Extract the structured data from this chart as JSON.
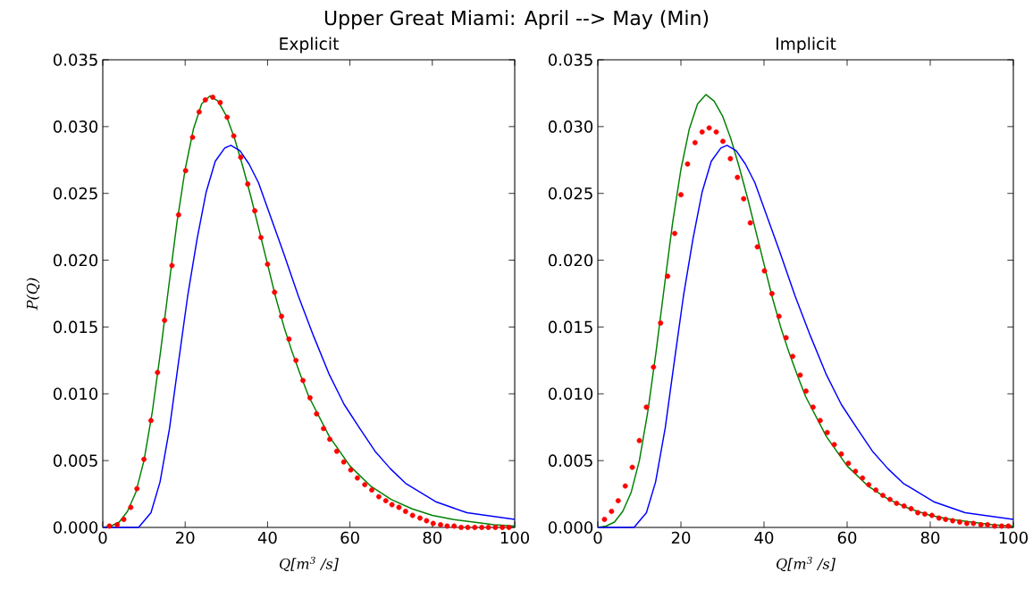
{
  "chart_data": [
    {
      "type": "line",
      "title": "Upper Great Miami: April --> May (Min)",
      "subtitle": "Explicit",
      "xlabel": "Q[m$^{3}$ /s]",
      "ylabel": "P(Q)",
      "xlim": [
        0,
        100
      ],
      "ylim": [
        0,
        0.035
      ],
      "xticks": [
        0,
        20,
        40,
        60,
        80,
        100
      ],
      "yticks": [
        {
          "value": 0,
          "label": "0.000"
        },
        {
          "value": 0.005,
          "label": "0.005"
        },
        {
          "value": 0.01,
          "label": "0.010"
        },
        {
          "value": 0.015,
          "label": "0.015"
        },
        {
          "value": 0.02,
          "label": "0.020"
        },
        {
          "value": 0.025,
          "label": "0.025"
        },
        {
          "value": 0.03,
          "label": "0.030"
        },
        {
          "value": 0.035,
          "label": "0.035"
        }
      ],
      "series": [
        {
          "color": "#008000",
          "x": [
            0,
            2,
            4,
            6,
            8,
            10,
            12,
            14,
            16,
            18,
            20,
            22,
            24,
            26,
            28,
            30,
            32,
            34,
            36,
            38,
            40,
            42,
            44,
            46,
            48,
            50,
            55,
            60,
            65,
            70,
            75,
            80,
            85,
            90,
            95,
            100
          ],
          "values": [
            0,
            0.0001,
            0.0004,
            0.0012,
            0.0026,
            0.005,
            0.0086,
            0.0131,
            0.018,
            0.0228,
            0.0268,
            0.0298,
            0.0317,
            0.0323,
            0.0319,
            0.0308,
            0.0291,
            0.027,
            0.0247,
            0.0222,
            0.0197,
            0.0172,
            0.015,
            0.0131,
            0.0114,
            0.0098,
            0.0068,
            0.0046,
            0.0031,
            0.0021,
            0.0014,
            0.0009,
            0.0006,
            0.0004,
            0.0002,
            0.0001
          ]
        },
        {
          "color": "#0000ff",
          "x": [
            0,
            5,
            8.7,
            11.7,
            13.9,
            16.2,
            18.4,
            20.6,
            22.9,
            25.1,
            27.3,
            29.6,
            31.1,
            33.3,
            35.5,
            37.8,
            40,
            43.7,
            47.5,
            51.2,
            54.9,
            58.6,
            62.4,
            66.1,
            69.8,
            73.5,
            81,
            88.4,
            100
          ],
          "values": [
            0,
            0,
            0,
            0.0011,
            0.0034,
            0.0074,
            0.0124,
            0.0173,
            0.0216,
            0.0251,
            0.0274,
            0.0284,
            0.0286,
            0.0282,
            0.0272,
            0.0258,
            0.0239,
            0.0207,
            0.0173,
            0.0143,
            0.0115,
            0.0092,
            0.0074,
            0.0057,
            0.0044,
            0.0033,
            0.0019,
            0.0011,
            0.0006
          ]
        },
        {
          "type": "scatter",
          "marker": "circle",
          "color": "#ff0000",
          "x": [
            1.6,
            3.5,
            5.1,
            6.8,
            8.3,
            10,
            11.7,
            13.3,
            15,
            16.8,
            18.4,
            20.1,
            21.8,
            23.4,
            24.9,
            26.7,
            28.5,
            30.2,
            31.8,
            33.5,
            35.2,
            36.9,
            38.4,
            40,
            41.7,
            43.4,
            45.2,
            46.9,
            48.6,
            50.3,
            51.9,
            53.6,
            55.1,
            56.8,
            58.5,
            60.2,
            61.8,
            63.6,
            65.3,
            67,
            68.7,
            70.2,
            71.9,
            73.5,
            75.2,
            77,
            78.6,
            80.2,
            82,
            83.6,
            85.3,
            87,
            88.6,
            90.3,
            92,
            93.6,
            95.3,
            97,
            98.6
          ],
          "values": [
            0.0001,
            0.0002,
            0.0006,
            0.0015,
            0.0029,
            0.0051,
            0.008,
            0.0116,
            0.0155,
            0.0196,
            0.0234,
            0.0267,
            0.0292,
            0.0311,
            0.032,
            0.0322,
            0.0318,
            0.0307,
            0.0293,
            0.0277,
            0.0257,
            0.0237,
            0.0217,
            0.0197,
            0.0176,
            0.0158,
            0.0141,
            0.0125,
            0.011,
            0.0097,
            0.0085,
            0.0074,
            0.0066,
            0.0057,
            0.0049,
            0.0043,
            0.0037,
            0.0032,
            0.0028,
            0.0023,
            0.002,
            0.0017,
            0.0015,
            0.0012,
            0.0009,
            0.0007,
            0.0005,
            0.0003,
            0.0002,
            0.0001,
            0.0001,
            0,
            0,
            0,
            0,
            0,
            0,
            0,
            0
          ]
        }
      ]
    },
    {
      "type": "line",
      "subtitle": "Implicit",
      "xlabel": "Q[m$^{3}$ /s]",
      "xlim": [
        0,
        100
      ],
      "ylim": [
        0,
        0.035
      ],
      "xticks": [
        0,
        20,
        40,
        60,
        80,
        100
      ],
      "yticks": [
        {
          "value": 0,
          "label": "0.000"
        },
        {
          "value": 0.005,
          "label": "0.005"
        },
        {
          "value": 0.01,
          "label": "0.010"
        },
        {
          "value": 0.015,
          "label": "0.015"
        },
        {
          "value": 0.02,
          "label": "0.020"
        },
        {
          "value": 0.025,
          "label": "0.025"
        },
        {
          "value": 0.03,
          "label": "0.030"
        },
        {
          "value": 0.035,
          "label": "0.035"
        }
      ],
      "series": [
        {
          "color": "#008000",
          "x": [
            0,
            2,
            4,
            6,
            8,
            10,
            12,
            14,
            16,
            18,
            20,
            22,
            24,
            26,
            28,
            30,
            32,
            34,
            36,
            38,
            40,
            42,
            44,
            46,
            48,
            50,
            55,
            60,
            65,
            70,
            75,
            80,
            85,
            90,
            95,
            100
          ],
          "values": [
            0,
            0.0001,
            0.0004,
            0.0012,
            0.0026,
            0.005,
            0.0086,
            0.0131,
            0.018,
            0.0228,
            0.0268,
            0.0298,
            0.0317,
            0.0324,
            0.0319,
            0.0308,
            0.0291,
            0.027,
            0.0247,
            0.0222,
            0.0197,
            0.0172,
            0.015,
            0.0131,
            0.0114,
            0.0098,
            0.0068,
            0.0046,
            0.0031,
            0.0021,
            0.0014,
            0.0009,
            0.0006,
            0.0004,
            0.0002,
            0.0001
          ]
        },
        {
          "color": "#0000ff",
          "x": [
            0,
            5,
            8.7,
            11.7,
            13.9,
            16.2,
            18.4,
            20.6,
            22.9,
            25.1,
            27.3,
            29.6,
            31.1,
            33.3,
            35.5,
            37.8,
            40,
            43.7,
            47.5,
            51.2,
            54.9,
            58.6,
            62.4,
            66.1,
            69.8,
            73.5,
            81,
            88.4,
            100
          ],
          "values": [
            0,
            0,
            0,
            0.0011,
            0.0034,
            0.0074,
            0.0124,
            0.0173,
            0.0216,
            0.0251,
            0.0274,
            0.0284,
            0.0286,
            0.0282,
            0.0272,
            0.0258,
            0.0239,
            0.0207,
            0.0173,
            0.0143,
            0.0115,
            0.0092,
            0.0074,
            0.0057,
            0.0044,
            0.0033,
            0.0019,
            0.0011,
            0.0006
          ]
        },
        {
          "type": "scatter",
          "marker": "circle",
          "color": "#ff0000",
          "x": [
            1.6,
            3.3,
            4.9,
            6.6,
            8.3,
            10,
            11.7,
            13.4,
            15.1,
            16.8,
            18.5,
            20,
            21.6,
            23.4,
            25.1,
            26.8,
            28.5,
            30.1,
            31.9,
            33.6,
            35.1,
            36.7,
            38.4,
            40.1,
            41.9,
            43.6,
            45.3,
            46.9,
            48.7,
            50.1,
            51.8,
            53.5,
            55.2,
            56.9,
            58.6,
            60.3,
            62,
            63.7,
            65.2,
            66.9,
            68.6,
            70.3,
            71.9,
            73.7,
            75.4,
            77,
            78.7,
            80.4,
            82.1,
            83.7,
            85.4,
            87.1,
            88.8,
            90.4,
            92.2,
            93.8,
            95.5,
            97.2,
            98.8
          ],
          "values": [
            0.0006,
            0.0012,
            0.002,
            0.0031,
            0.0045,
            0.0065,
            0.009,
            0.012,
            0.0153,
            0.0188,
            0.022,
            0.0249,
            0.0272,
            0.0288,
            0.0296,
            0.0299,
            0.0296,
            0.0289,
            0.0276,
            0.0262,
            0.0246,
            0.0228,
            0.021,
            0.0192,
            0.0175,
            0.0158,
            0.0142,
            0.0128,
            0.0114,
            0.0102,
            0.009,
            0.008,
            0.0071,
            0.0062,
            0.0055,
            0.0048,
            0.0042,
            0.0037,
            0.0032,
            0.0028,
            0.0024,
            0.0021,
            0.0018,
            0.0016,
            0.0014,
            0.0011,
            0.001,
            0.0009,
            0.0007,
            0.0006,
            0.0005,
            0.0004,
            0.0003,
            0.0003,
            0.0002,
            0.0002,
            0.0001,
            0.0001,
            0.0001
          ]
        }
      ]
    }
  ]
}
